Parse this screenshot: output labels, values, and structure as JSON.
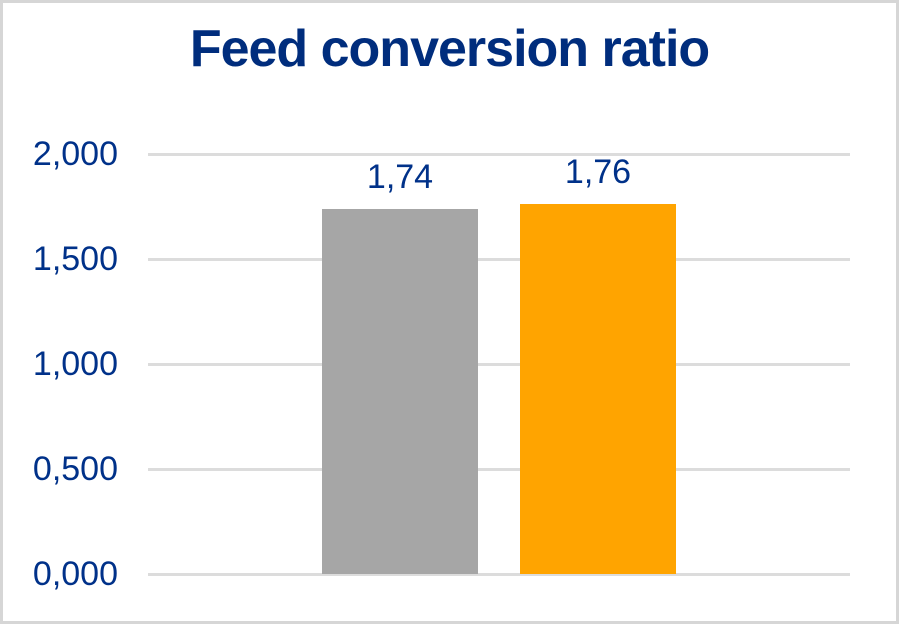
{
  "window": {
    "background_color": "#ffffff",
    "border_color": "#d6d6d6"
  },
  "chart_data": {
    "type": "bar",
    "title": "Feed conversion ratio",
    "title_color": "#002d7d",
    "xlabel": "",
    "ylabel": "",
    "ylim": [
      0,
      2
    ],
    "grid": true,
    "legend": "none",
    "decimal_separator": ",",
    "axis_label_color": "#003189",
    "data_label_color": "#003189",
    "gridline_color": "#dcdcdc",
    "y_ticks": [
      {
        "value": 2.0,
        "label": "2,000"
      },
      {
        "value": 1.5,
        "label": "1,500"
      },
      {
        "value": 1.0,
        "label": "1,000"
      },
      {
        "value": 0.5,
        "label": "0,500"
      },
      {
        "value": 0.0,
        "label": "0,000"
      }
    ],
    "series": [
      {
        "value": 1.74,
        "data_label": "1,74",
        "color": "#a6a6a6"
      },
      {
        "value": 1.76,
        "data_label": "1,76",
        "color": "#ffa400"
      }
    ]
  }
}
